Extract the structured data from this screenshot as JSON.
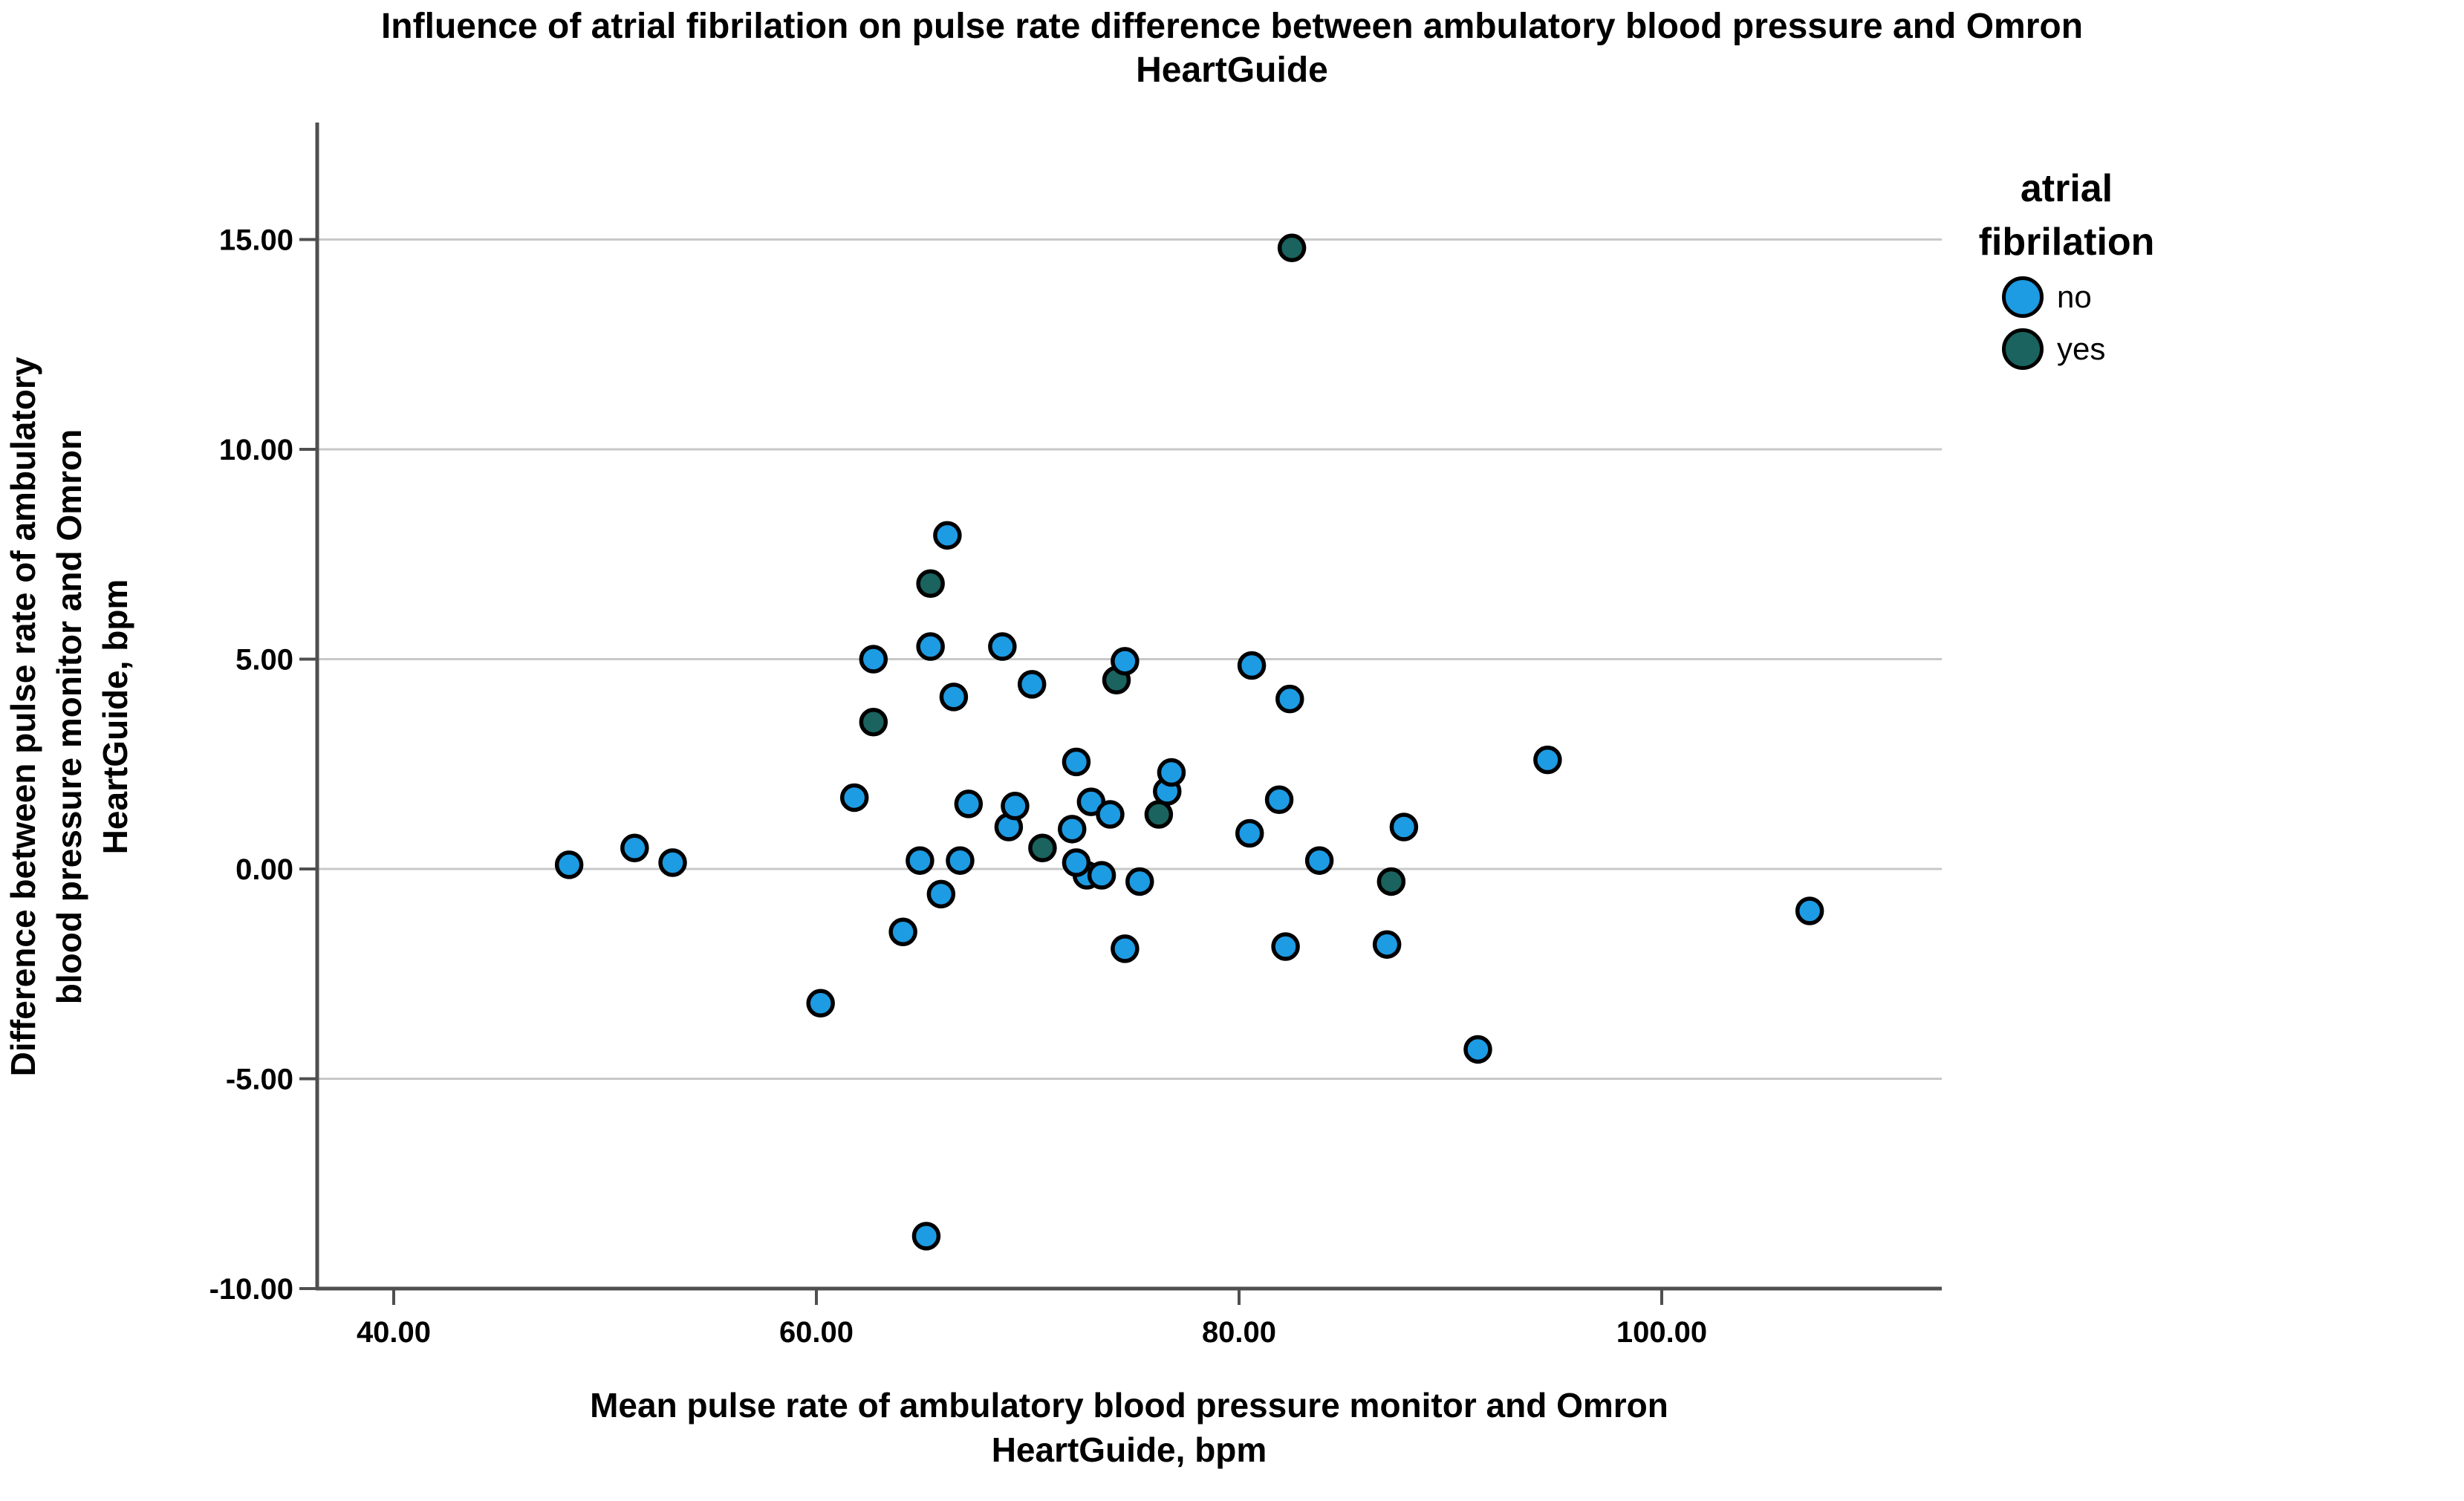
{
  "title": {
    "line1": "Influence of atrial fibrilation on pulse rate difference between ambulatory blood pressure and Omron",
    "line2": "HeartGuide"
  },
  "legend": {
    "title_line1": "atrial",
    "title_line2": "fibrilation",
    "items": [
      {
        "label": "no",
        "color": "#1D9BE3"
      },
      {
        "label": "yes",
        "color": "#1A635F"
      }
    ]
  },
  "x_axis": {
    "title_line1": "Mean pulse rate of ambulatory blood pressure monitor and Omron",
    "title_line2": "HeartGuide, bpm",
    "tick_labels": [
      "40.00",
      "60.00",
      "80.00",
      "100.00"
    ],
    "tick_values": [
      40,
      60,
      80,
      100
    ]
  },
  "y_axis": {
    "title_line1": "Difference between pulse rate of ambulatory",
    "title_line2": "blood pressure monitor and Omron",
    "title_line3": "HeartGuide, bpm",
    "tick_labels": [
      "15.00",
      "10.00",
      "5.00",
      "0.00",
      "-5.00",
      "-10.00"
    ],
    "tick_values": [
      15,
      10,
      5,
      0,
      -5,
      -10
    ],
    "gridline_values": [
      15,
      10,
      5,
      0,
      -5
    ]
  },
  "style": {
    "background": "#ffffff",
    "gridline_color": "#c8c8c8",
    "axis_color": "#4f4f4f",
    "marker_stroke": "#000000",
    "no_fill": "#1D9BE3",
    "yes_fill": "#1A635F"
  },
  "chart_data": {
    "type": "scatter",
    "title": "Influence of atrial fibrilation on pulse rate difference between ambulatory blood pressure and Omron HeartGuide",
    "xlabel": "Mean pulse rate of ambulatory blood pressure monitor and Omron HeartGuide, bpm",
    "ylabel": "Difference between pulse rate of ambulatory blood pressure monitor and Omron HeartGuide, bpm",
    "xlim": [
      36.4,
      113.3
    ],
    "ylim": [
      -10,
      17.8
    ],
    "x_ticks": [
      40,
      60,
      80,
      100
    ],
    "y_ticks": [
      -10,
      -5,
      0,
      5,
      10,
      15
    ],
    "grid": "horizontal",
    "legend_position": "right",
    "legend_title": "atrial fibrilation",
    "series": [
      {
        "name": "yes",
        "color": "#1A635F",
        "points": [
          [
            62.7,
            3.5
          ],
          [
            65.4,
            6.8
          ],
          [
            70.7,
            0.5
          ],
          [
            74.2,
            4.5
          ],
          [
            76.2,
            1.3
          ],
          [
            82.5,
            14.8
          ],
          [
            87.2,
            -0.3
          ]
        ]
      },
      {
        "name": "no",
        "color": "#1D9BE3",
        "points": [
          [
            48.3,
            0.1
          ],
          [
            51.4,
            0.5
          ],
          [
            53.2,
            0.15
          ],
          [
            60.2,
            -3.2
          ],
          [
            61.8,
            1.7
          ],
          [
            62.7,
            5.0
          ],
          [
            64.1,
            -1.5
          ],
          [
            64.9,
            0.2
          ],
          [
            65.2,
            -8.75
          ],
          [
            65.4,
            5.3
          ],
          [
            65.9,
            -0.6
          ],
          [
            66.2,
            7.95
          ],
          [
            66.5,
            4.1
          ],
          [
            66.8,
            0.2
          ],
          [
            67.2,
            1.55
          ],
          [
            68.8,
            5.3
          ],
          [
            69.1,
            1.0
          ],
          [
            69.4,
            1.5
          ],
          [
            70.2,
            4.4
          ],
          [
            72.1,
            0.95
          ],
          [
            72.3,
            2.55
          ],
          [
            72.8,
            -0.15
          ],
          [
            73.5,
            -0.15
          ],
          [
            72.3,
            0.15
          ],
          [
            73.0,
            1.6
          ],
          [
            73.9,
            1.3
          ],
          [
            74.6,
            -1.9
          ],
          [
            74.6,
            4.95
          ],
          [
            75.3,
            -0.3
          ],
          [
            76.6,
            1.85
          ],
          [
            76.8,
            2.3
          ],
          [
            80.5,
            0.85
          ],
          [
            80.6,
            4.85
          ],
          [
            81.9,
            1.65
          ],
          [
            82.2,
            -1.85
          ],
          [
            82.4,
            4.05
          ],
          [
            83.8,
            0.2
          ],
          [
            87.0,
            -1.8
          ],
          [
            87.8,
            1.0
          ],
          [
            91.3,
            -4.3
          ],
          [
            94.6,
            2.6
          ],
          [
            107.0,
            -1.0
          ]
        ]
      }
    ]
  }
}
